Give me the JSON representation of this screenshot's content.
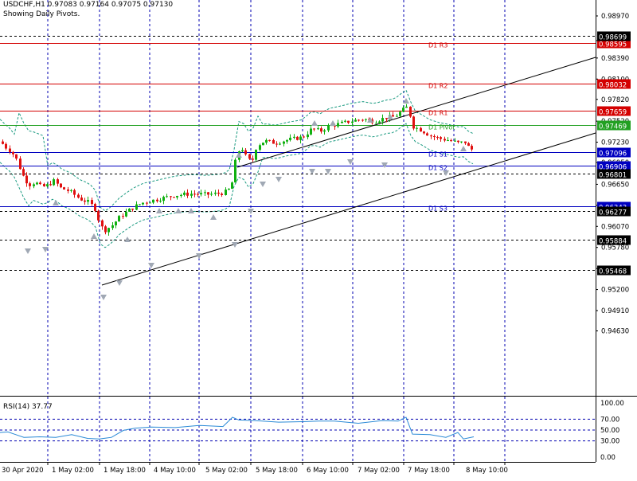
{
  "header": {
    "symbol_line": "USDCHF,H1  0.97083 0.97164 0.97075 0.97130",
    "pivots_line": "Showing Daily Pivots."
  },
  "price_axis": {
    "ticks": [
      "0.98970",
      "0.98630",
      "0.98390",
      "0.98100",
      "0.97820",
      "0.97520",
      "0.97230",
      "0.96950",
      "0.96650",
      "0.96360",
      "0.96070",
      "0.95780",
      "0.95490",
      "0.95200",
      "0.94910",
      "0.94630"
    ]
  },
  "pivot_levels": [
    {
      "label": "D1 R3",
      "price": "0.98595",
      "color": "#d40000"
    },
    {
      "label": "D1 R2",
      "price": "0.98032",
      "color": "#d40000"
    },
    {
      "label": "D1 R1",
      "price": "0.97659",
      "color": "#d40000"
    },
    {
      "label": "D1 Pivot",
      "price": "0.97469",
      "color": "#22a022"
    },
    {
      "label": "D1 S1",
      "price": "0.97096",
      "color": "#0000c0"
    },
    {
      "label": "D1 S2",
      "price": "0.96906",
      "color": "#0000c0"
    },
    {
      "label": "D1 S3",
      "price": "0.96343",
      "color": "#0000c0"
    }
  ],
  "dashed_levels": [
    "0.98699",
    "0.96801",
    "0.96277",
    "0.95884",
    "0.95468"
  ],
  "rsi": {
    "label": "RSI(14) 37.77",
    "ticks": [
      "100.00",
      "70.00",
      "50.00",
      "30.00",
      "0.00"
    ]
  },
  "time_axis": {
    "labels": [
      "30 Apr 2020",
      "1 May 02:00",
      "1 May 18:00",
      "4 May 10:00",
      "5 May 02:00",
      "5 May 18:00",
      "6 May 10:00",
      "7 May 02:00",
      "7 May 18:00",
      "8 May 10:00"
    ]
  },
  "colors": {
    "bull": "#10b010",
    "bear": "#e01010",
    "grid": "#0000b0",
    "channel": "#000000",
    "bands": "#1a9a80",
    "fractal": "#a0a8b4"
  }
}
